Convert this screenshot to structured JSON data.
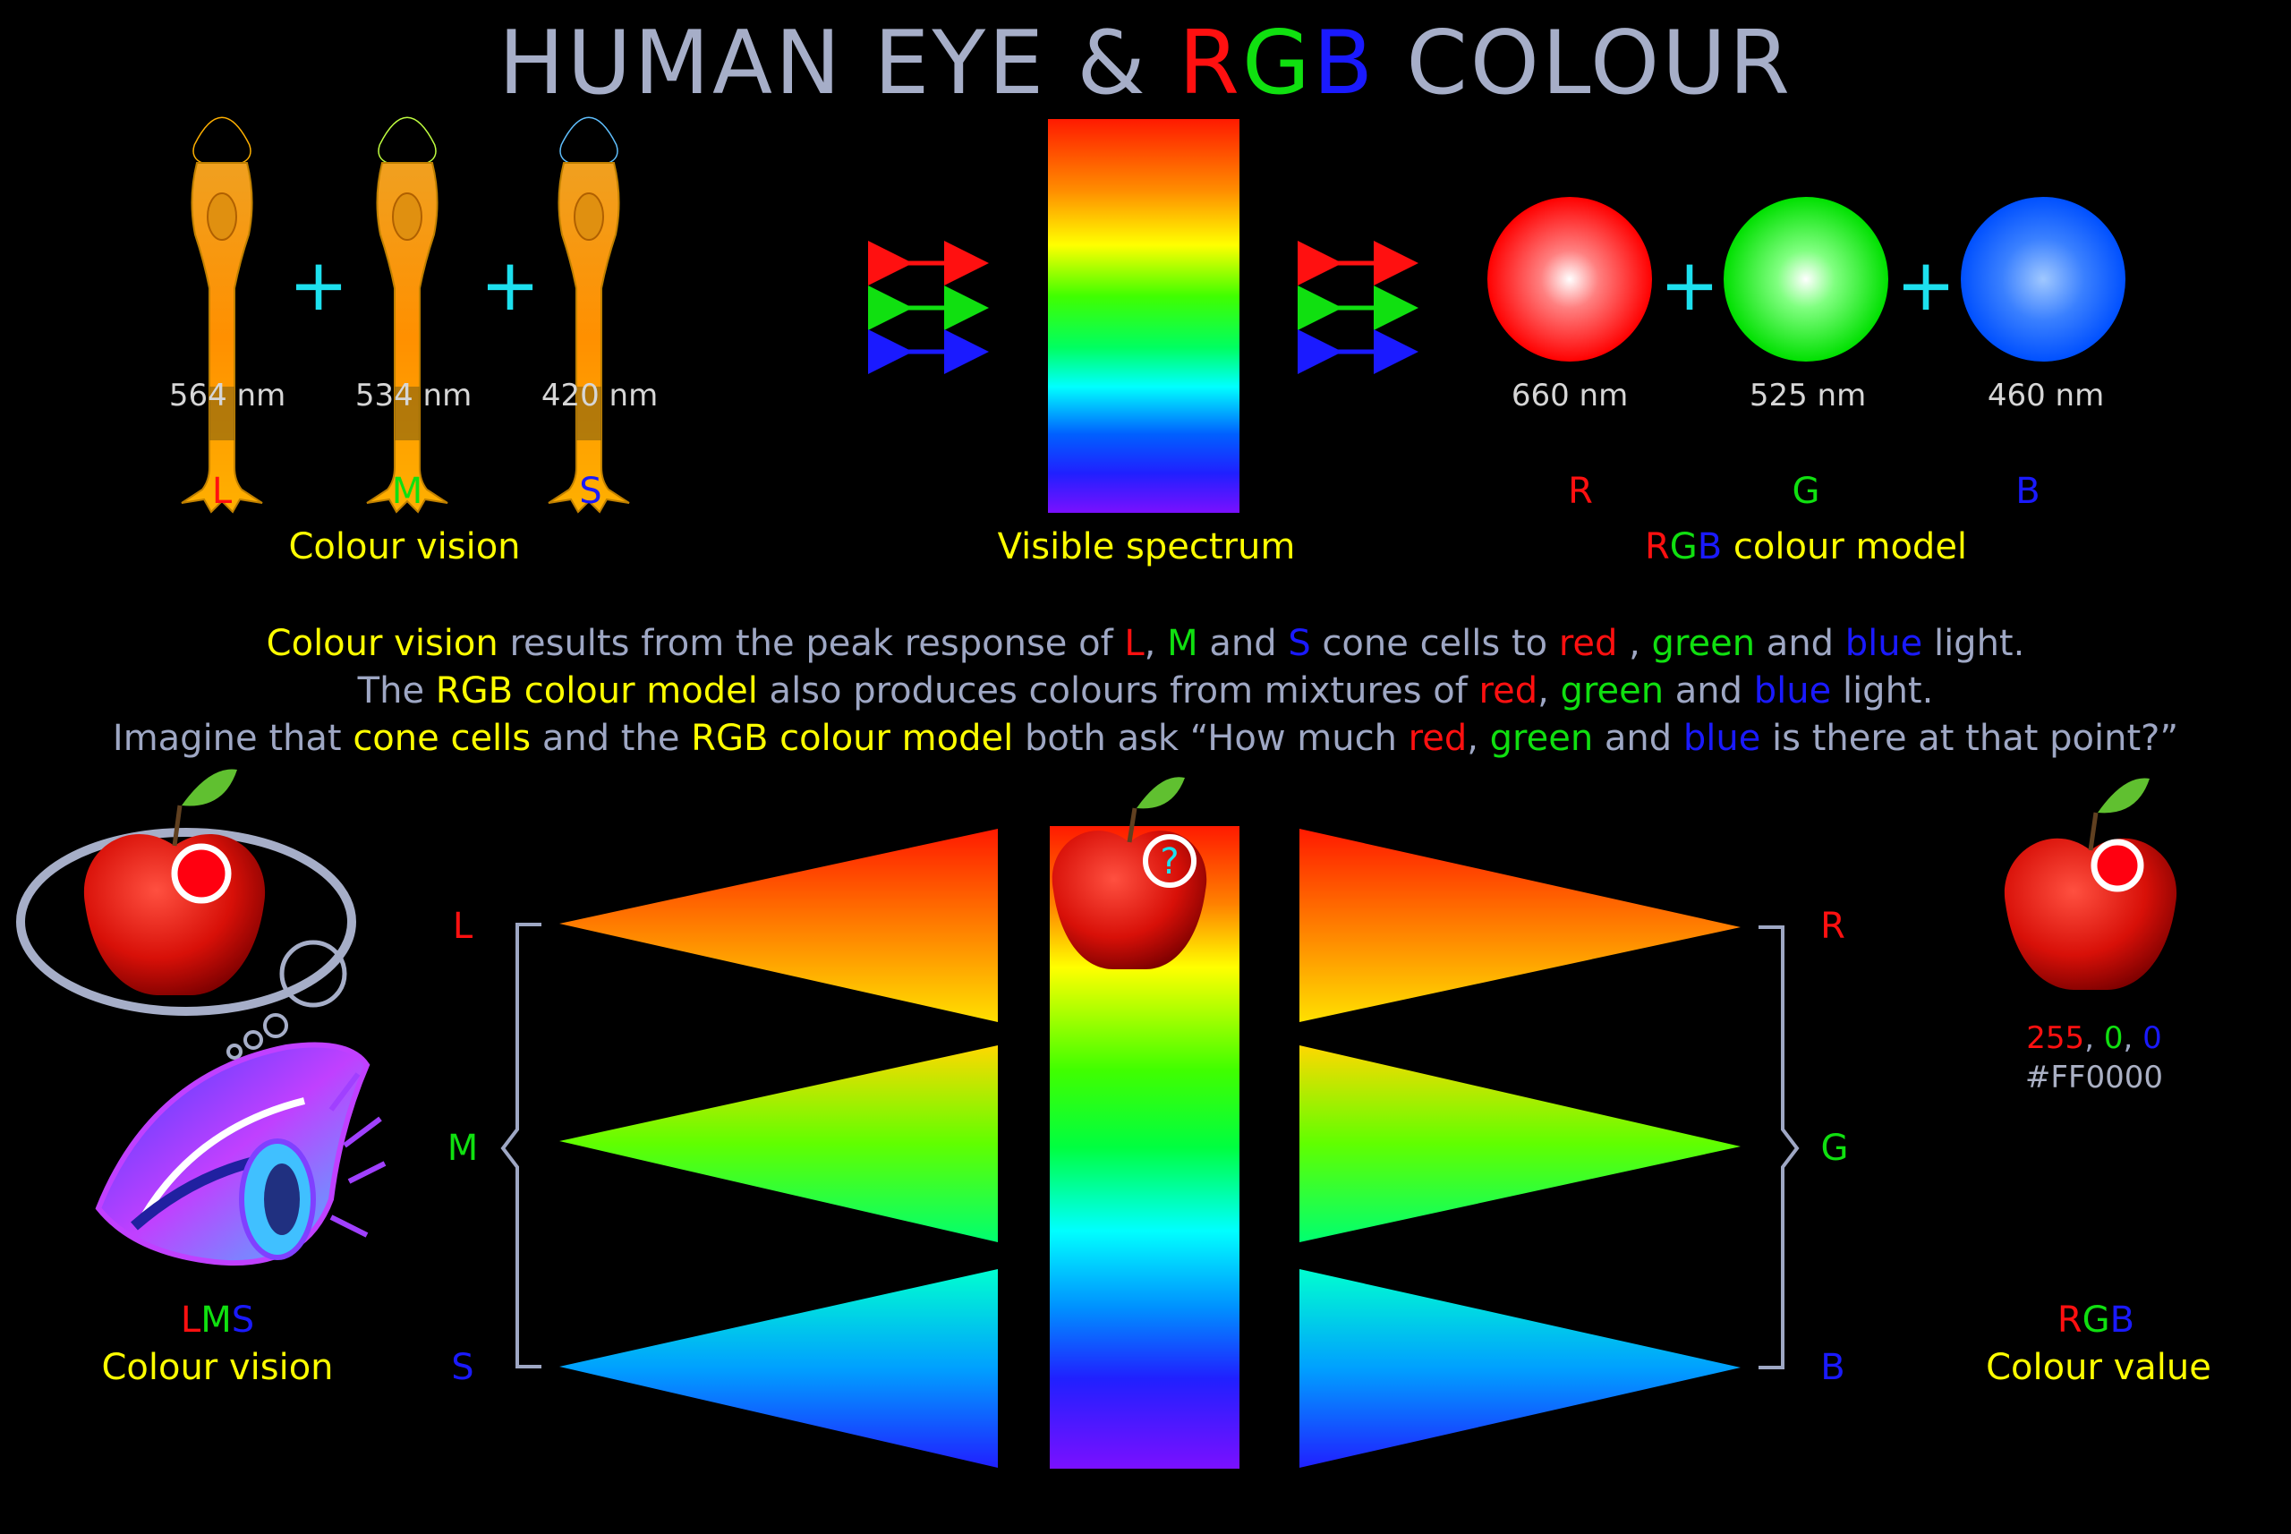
{
  "title": {
    "prefix": "HUMAN EYE & ",
    "r": "R",
    "g": "G",
    "b": "B",
    "suffix": " COLOUR"
  },
  "cones": [
    {
      "nm": "564 nm",
      "letter": "L"
    },
    {
      "nm": "534 nm",
      "letter": "M"
    },
    {
      "nm": "420 nm",
      "letter": "S"
    }
  ],
  "rgb_circles": [
    {
      "nm": "660 nm",
      "letter": "R"
    },
    {
      "nm": "525 nm",
      "letter": "G"
    },
    {
      "nm": "460 nm",
      "letter": "B"
    }
  ],
  "plus_sign": "+",
  "labels": {
    "colour_vision": "Colour vision",
    "visible_spectrum": "Visible spectrum",
    "rgb_model_r": "R",
    "rgb_model_g": "G",
    "rgb_model_b": "B",
    "rgb_model_rest": " colour model"
  },
  "paragraph": {
    "line1": [
      "Colour vision",
      " results from the peak response of ",
      "L",
      ", ",
      "M",
      " and ",
      "S",
      " cone cells to ",
      "red",
      " , ",
      "green",
      " and ",
      "blue",
      " light."
    ],
    "line2": [
      "The ",
      "RGB colour model",
      " also produces colours from mixtures of ",
      "red",
      ", ",
      "green",
      " and ",
      "blue",
      " light."
    ],
    "line3": [
      "Imagine that ",
      "cone cells",
      " and the ",
      "RGB colour model",
      " both ask “How much ",
      "red",
      ", ",
      "green",
      " and ",
      "blue",
      " is there at that point?”"
    ]
  },
  "bottom": {
    "left_letters": [
      "L",
      "M",
      "S"
    ],
    "right_letters": [
      "R",
      "G",
      "B"
    ],
    "question_mark": "?",
    "lms_l": "L",
    "lms_m": "M",
    "lms_s": "S",
    "lms_caption": "Colour vision",
    "rgb_r": "R",
    "rgb_g": "G",
    "rgb_b": "B",
    "rgb_caption": "Colour value",
    "value_r": "255",
    "value_g": "0",
    "value_b": "0",
    "value_sep": ", ",
    "hex": "#FF0000"
  },
  "colors": {
    "red": "#ff1010",
    "green": "#10e010",
    "blue": "#1a1aff",
    "yellow": "#ffff00",
    "cyan": "#1de0ee",
    "grey": "#9ea7c4"
  }
}
